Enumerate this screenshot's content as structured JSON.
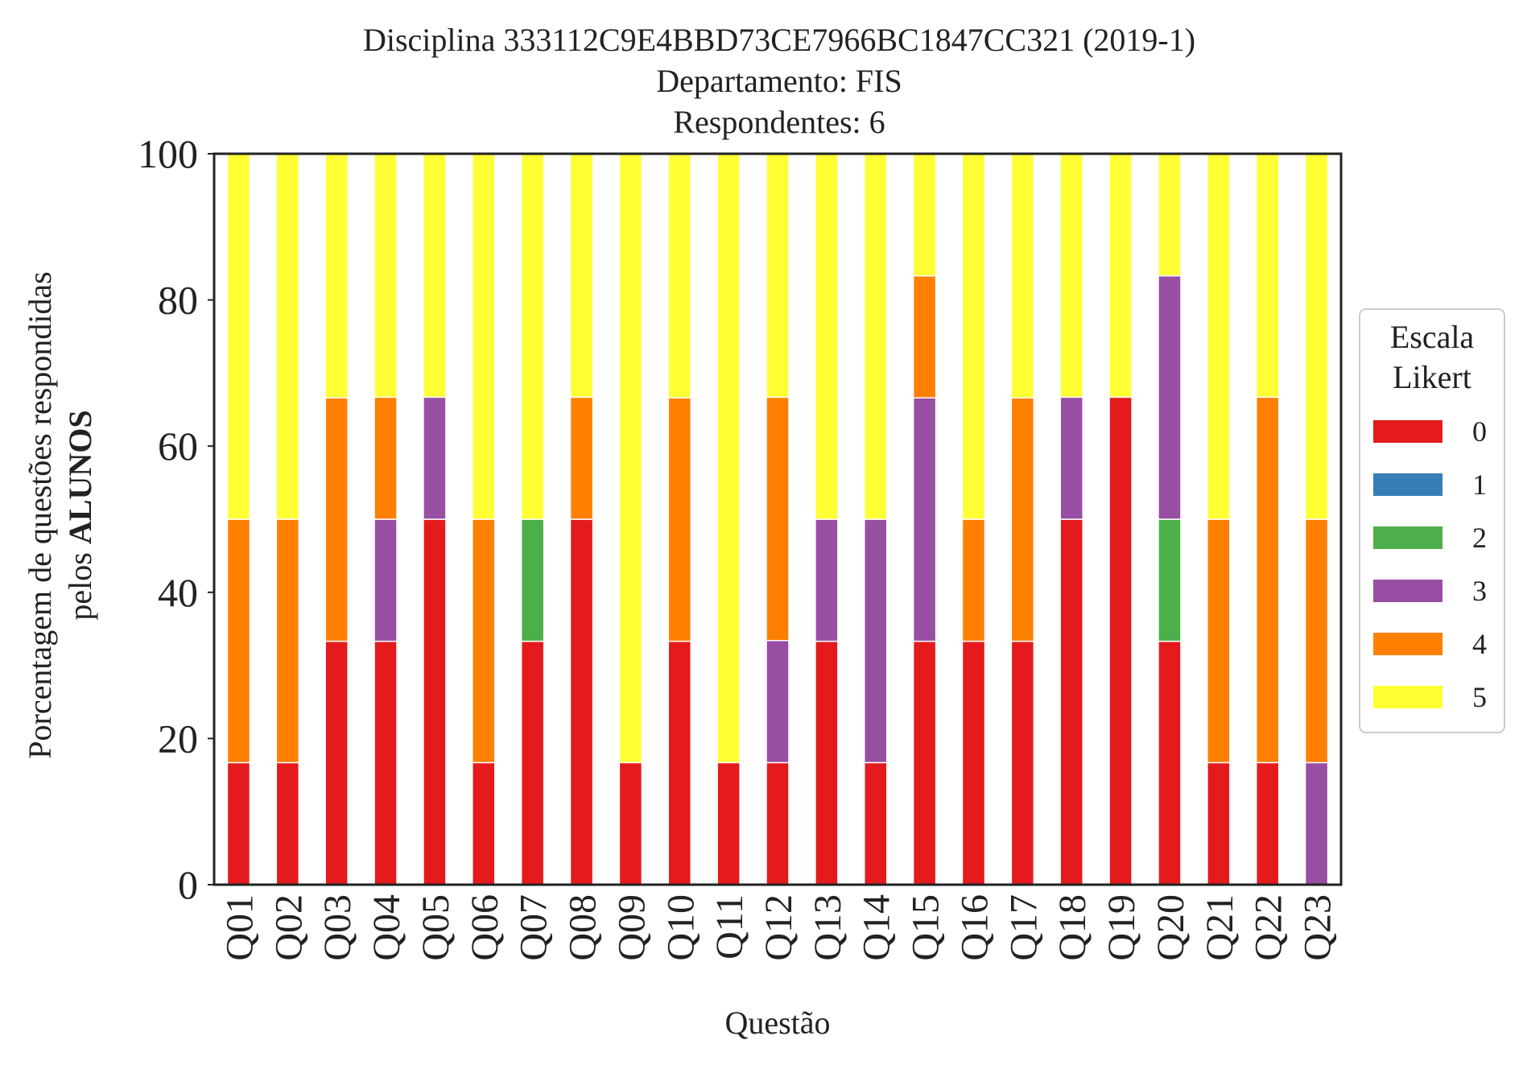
{
  "chart_data": {
    "type": "bar",
    "stacked": true,
    "title_lines": [
      "Disciplina 333112C9E4BBD73CE7966BC1847CC321 (2019-1)",
      "Departamento: FIS",
      "Respondentes: 6"
    ],
    "xlabel": "Questão",
    "ylabel_line1": "Porcentagem de questões respondidas",
    "ylabel_line2_prefix": "pelos ",
    "ylabel_line2_bold": "ALUNOS",
    "ylim": [
      0,
      100
    ],
    "yticks": [
      0,
      20,
      40,
      60,
      80,
      100
    ],
    "grid": false,
    "legend": {
      "title_lines": [
        "Escala",
        "Likert"
      ],
      "placement": "right"
    },
    "categories": [
      "Q01",
      "Q02",
      "Q03",
      "Q04",
      "Q05",
      "Q06",
      "Q07",
      "Q08",
      "Q09",
      "Q10",
      "Q11",
      "Q12",
      "Q13",
      "Q14",
      "Q15",
      "Q16",
      "Q17",
      "Q18",
      "Q19",
      "Q20",
      "Q21",
      "Q22",
      "Q23"
    ],
    "series": [
      {
        "name": "0",
        "color": "#e41a1c",
        "values": [
          16.7,
          16.7,
          33.3,
          33.3,
          50,
          16.7,
          33.3,
          50,
          16.7,
          33.3,
          16.7,
          16.7,
          33.3,
          16.7,
          33.3,
          33.3,
          33.3,
          50,
          66.7,
          33.3,
          16.7,
          16.7,
          0
        ]
      },
      {
        "name": "1",
        "color": "#377eb8",
        "values": [
          0,
          0,
          0,
          0,
          0,
          0,
          0,
          0,
          0,
          0,
          0,
          0,
          0,
          0,
          0,
          0,
          0,
          0,
          0,
          0,
          0,
          0,
          0
        ]
      },
      {
        "name": "2",
        "color": "#4daf4a",
        "values": [
          0,
          0,
          0,
          0,
          0,
          0,
          16.7,
          0,
          0,
          0,
          0,
          0,
          0,
          0,
          0,
          0,
          0,
          0,
          0,
          16.7,
          0,
          0,
          0
        ]
      },
      {
        "name": "3",
        "color": "#984ea3",
        "values": [
          0,
          0,
          0,
          16.7,
          16.7,
          0,
          0,
          0,
          0,
          0,
          0,
          16.7,
          16.7,
          33.3,
          33.3,
          0,
          0,
          16.7,
          0,
          33.3,
          0,
          0,
          16.7
        ]
      },
      {
        "name": "4",
        "color": "#ff7f00",
        "values": [
          33.3,
          33.3,
          33.3,
          16.7,
          0,
          33.3,
          0,
          16.7,
          0,
          33.3,
          0,
          33.3,
          0,
          0,
          16.7,
          16.7,
          33.3,
          0,
          0,
          0,
          33.3,
          50,
          33.3
        ]
      },
      {
        "name": "5",
        "color": "#ffff33",
        "values": [
          50,
          50,
          33.3,
          33.3,
          33.3,
          50,
          50,
          33.3,
          83.3,
          33.3,
          83.3,
          33.3,
          50,
          50,
          16.7,
          50,
          33.3,
          33.3,
          33.3,
          16.7,
          50,
          33.3,
          50
        ]
      }
    ]
  }
}
